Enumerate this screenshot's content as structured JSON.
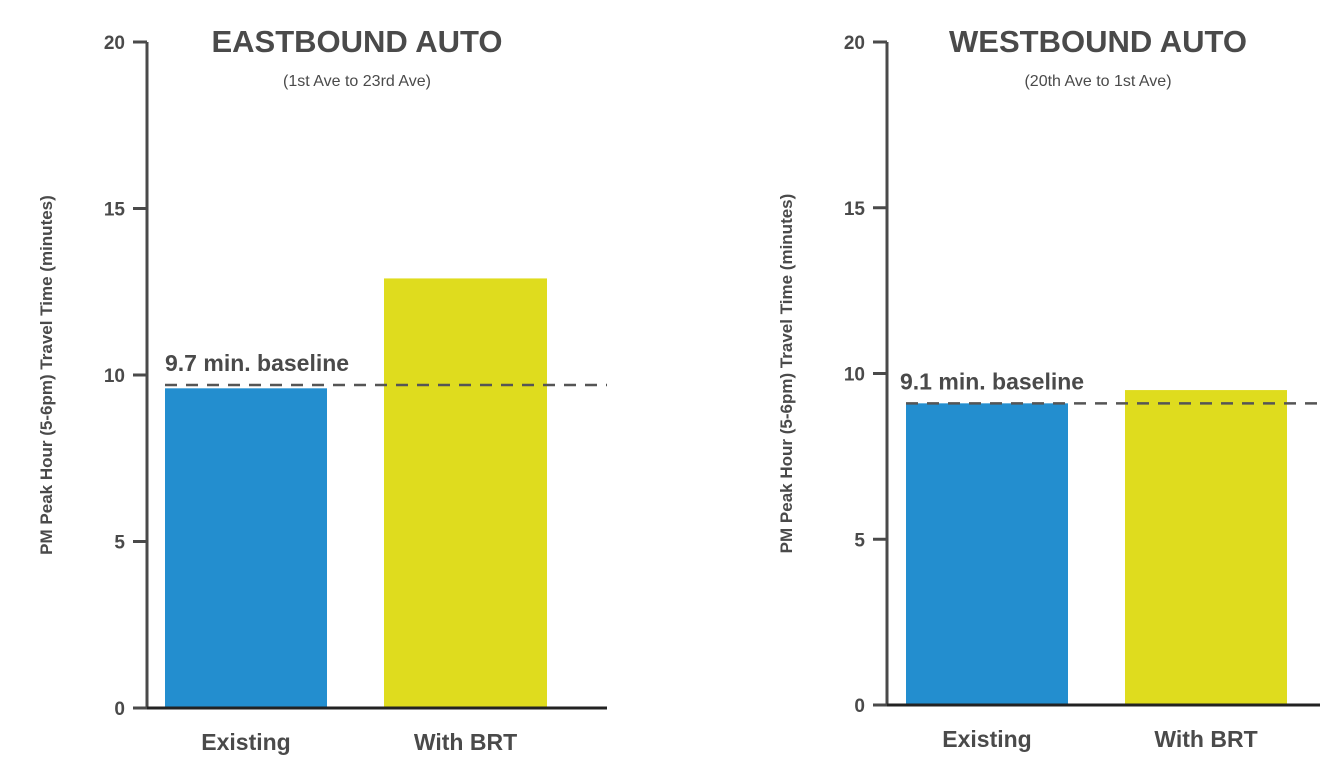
{
  "chart_data": [
    {
      "type": "bar",
      "title": "EASTBOUND AUTO",
      "subtitle": "(1st Ave to 23rd Ave)",
      "ylabel": "PM Peak Hour (5-6pm) Travel Time (minutes)",
      "xlabel": "",
      "categories": [
        "Existing",
        "With BRT"
      ],
      "values": [
        9.6,
        12.9
      ],
      "colors": [
        "#238ecf",
        "#dfdc1e"
      ],
      "ylim": [
        0,
        20
      ],
      "yticks": [
        0,
        5,
        10,
        15,
        20
      ],
      "baseline": {
        "value": 9.7,
        "label": "9.7 min. baseline"
      },
      "grid": false
    },
    {
      "type": "bar",
      "title": "WESTBOUND AUTO",
      "subtitle": "(20th Ave to 1st Ave)",
      "ylabel": "PM Peak Hour (5-6pm) Travel Time (minutes)",
      "xlabel": "",
      "categories": [
        "Existing",
        "With BRT"
      ],
      "values": [
        9.1,
        9.5
      ],
      "colors": [
        "#238ecf",
        "#dfdc1e"
      ],
      "ylim": [
        0,
        20
      ],
      "yticks": [
        0,
        5,
        10,
        15,
        20
      ],
      "baseline": {
        "value": 9.1,
        "label": "9.1 min. baseline"
      },
      "grid": false
    }
  ],
  "colors": {
    "axis": "#4a4a4a",
    "baseline": "#555555",
    "existing": "#238ecf",
    "with_brt": "#dfdc1e"
  }
}
